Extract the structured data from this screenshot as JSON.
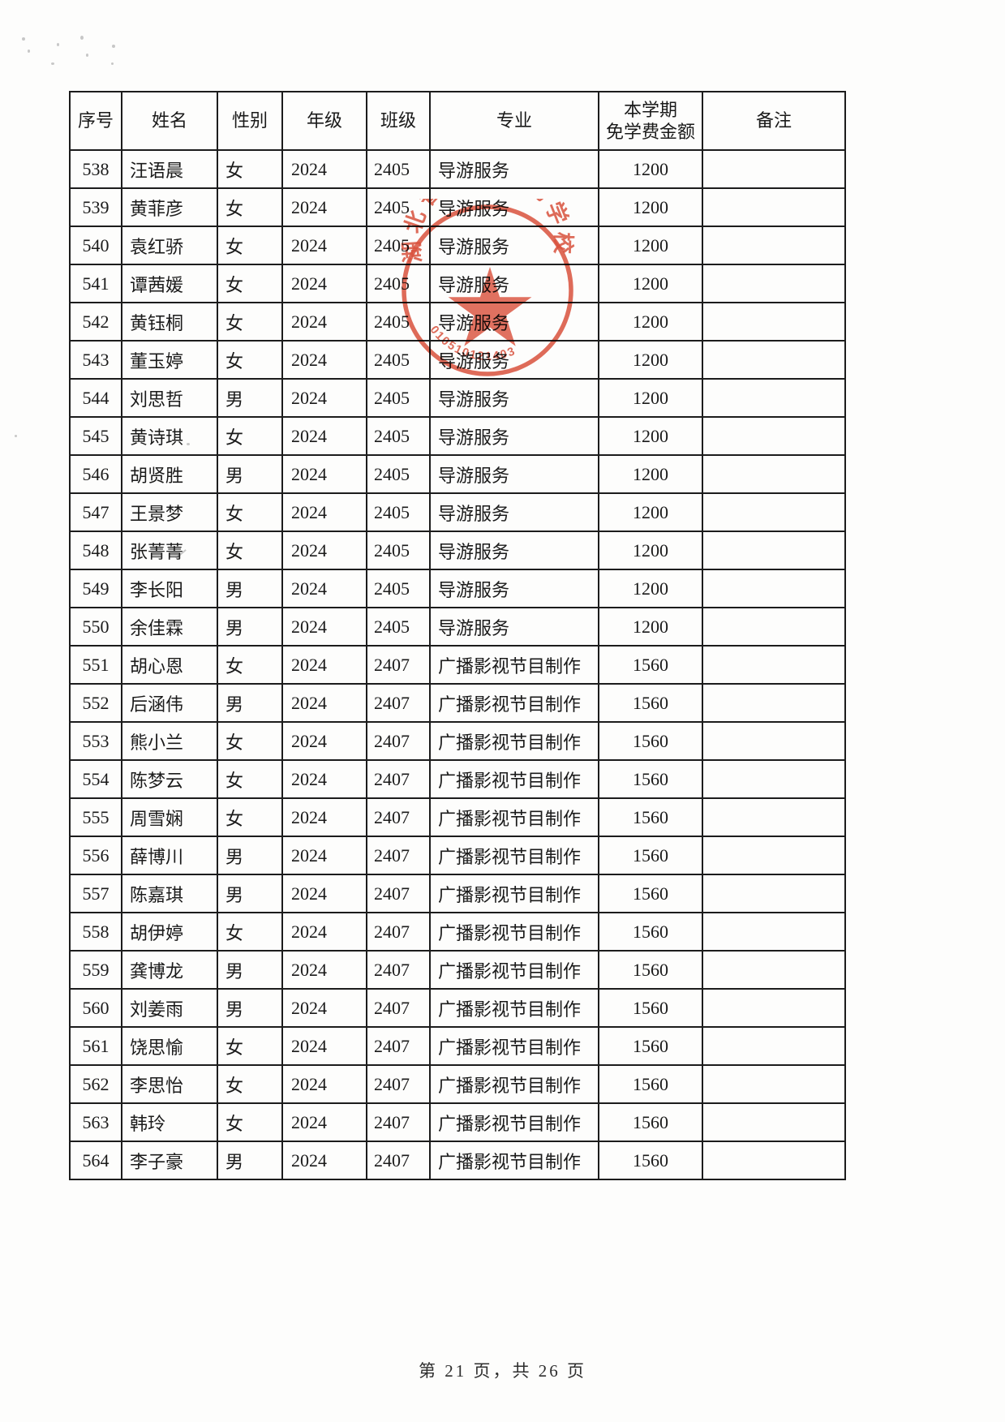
{
  "page": {
    "footer_text": "第 21 页，共 26 页"
  },
  "table": {
    "columns": [
      {
        "key": "index",
        "label": "序号"
      },
      {
        "key": "name",
        "label": "姓名"
      },
      {
        "key": "gender",
        "label": "性别"
      },
      {
        "key": "grade",
        "label": "年级"
      },
      {
        "key": "class",
        "label": "班级"
      },
      {
        "key": "major",
        "label": "专业"
      },
      {
        "key": "amount",
        "label": "本学期\n免学费金额"
      },
      {
        "key": "remark",
        "label": "备注"
      }
    ],
    "rows": [
      [
        "538",
        "汪语晨",
        "女",
        "2024",
        "2405",
        "导游服务",
        "1200",
        ""
      ],
      [
        "539",
        "黄菲彦",
        "女",
        "2024",
        "2405",
        "导游服务",
        "1200",
        ""
      ],
      [
        "540",
        "袁红骄",
        "女",
        "2024",
        "2405",
        "导游服务",
        "1200",
        ""
      ],
      [
        "541",
        "谭茜媛",
        "女",
        "2024",
        "2405",
        "导游服务",
        "1200",
        ""
      ],
      [
        "542",
        "黄钰桐",
        "女",
        "2024",
        "2405",
        "导游服务",
        "1200",
        ""
      ],
      [
        "543",
        "董玉婷",
        "女",
        "2024",
        "2405",
        "导游服务",
        "1200",
        ""
      ],
      [
        "544",
        "刘思哲",
        "男",
        "2024",
        "2405",
        "导游服务",
        "1200",
        ""
      ],
      [
        "545",
        "黄诗琪",
        "女",
        "2024",
        "2405",
        "导游服务",
        "1200",
        ""
      ],
      [
        "546",
        "胡贤胜",
        "男",
        "2024",
        "2405",
        "导游服务",
        "1200",
        ""
      ],
      [
        "547",
        "王景梦",
        "女",
        "2024",
        "2405",
        "导游服务",
        "1200",
        ""
      ],
      [
        "548",
        "张菁菁",
        "女",
        "2024",
        "2405",
        "导游服务",
        "1200",
        ""
      ],
      [
        "549",
        "李长阳",
        "男",
        "2024",
        "2405",
        "导游服务",
        "1200",
        ""
      ],
      [
        "550",
        "余佳霖",
        "男",
        "2024",
        "2405",
        "导游服务",
        "1200",
        ""
      ],
      [
        "551",
        "胡心恩",
        "女",
        "2024",
        "2407",
        "广播影视节目制作",
        "1560",
        ""
      ],
      [
        "552",
        "后涵伟",
        "男",
        "2024",
        "2407",
        "广播影视节目制作",
        "1560",
        ""
      ],
      [
        "553",
        "熊小兰",
        "女",
        "2024",
        "2407",
        "广播影视节目制作",
        "1560",
        ""
      ],
      [
        "554",
        "陈梦云",
        "女",
        "2024",
        "2407",
        "广播影视节目制作",
        "1560",
        ""
      ],
      [
        "555",
        "周雪娴",
        "女",
        "2024",
        "2407",
        "广播影视节目制作",
        "1560",
        ""
      ],
      [
        "556",
        "薛博川",
        "男",
        "2024",
        "2407",
        "广播影视节目制作",
        "1560",
        ""
      ],
      [
        "557",
        "陈嘉琪",
        "男",
        "2024",
        "2407",
        "广播影视节目制作",
        "1560",
        ""
      ],
      [
        "558",
        "胡伊婷",
        "女",
        "2024",
        "2407",
        "广播影视节目制作",
        "1560",
        ""
      ],
      [
        "559",
        "龚博龙",
        "男",
        "2024",
        "2407",
        "广播影视节目制作",
        "1560",
        ""
      ],
      [
        "560",
        "刘姜雨",
        "男",
        "2024",
        "2407",
        "广播影视节目制作",
        "1560",
        ""
      ],
      [
        "561",
        "饶思愉",
        "女",
        "2024",
        "2407",
        "广播影视节目制作",
        "1560",
        ""
      ],
      [
        "562",
        "李思怡",
        "女",
        "2024",
        "2407",
        "广播影视节目制作",
        "1560",
        ""
      ],
      [
        "563",
        "韩玲",
        "女",
        "2024",
        "2407",
        "广播影视节目制作",
        "1560",
        ""
      ],
      [
        "564",
        "李子豪",
        "男",
        "2024",
        "2407",
        "广播影视节目制作",
        "1560",
        ""
      ]
    ]
  },
  "stamp": {
    "ring_text": "湖北省广播电视学校",
    "serial": "010510121403",
    "color": "#d8432d"
  }
}
